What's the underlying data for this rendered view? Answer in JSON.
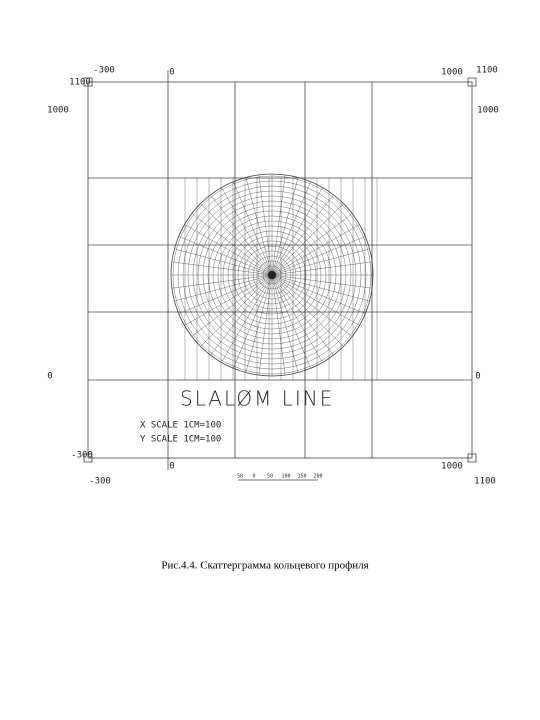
{
  "figure": {
    "labels": [
      "-300",
      "1100",
      "0",
      "1000",
      "1100",
      "1000",
      "1000",
      "0",
      "0",
      "-300",
      "0",
      "1000",
      "-300",
      "1100"
    ],
    "plot_title": "SLALØM LINE",
    "x_scale": "X SCALE 1CM=100",
    "y_scale": "Y SCALE 1CM=100",
    "scale_bar": [
      "50",
      "0",
      "50",
      "100",
      "150",
      "200"
    ]
  },
  "caption": "Рис.4.4. Скаттерграмма кольцевого профиля"
}
